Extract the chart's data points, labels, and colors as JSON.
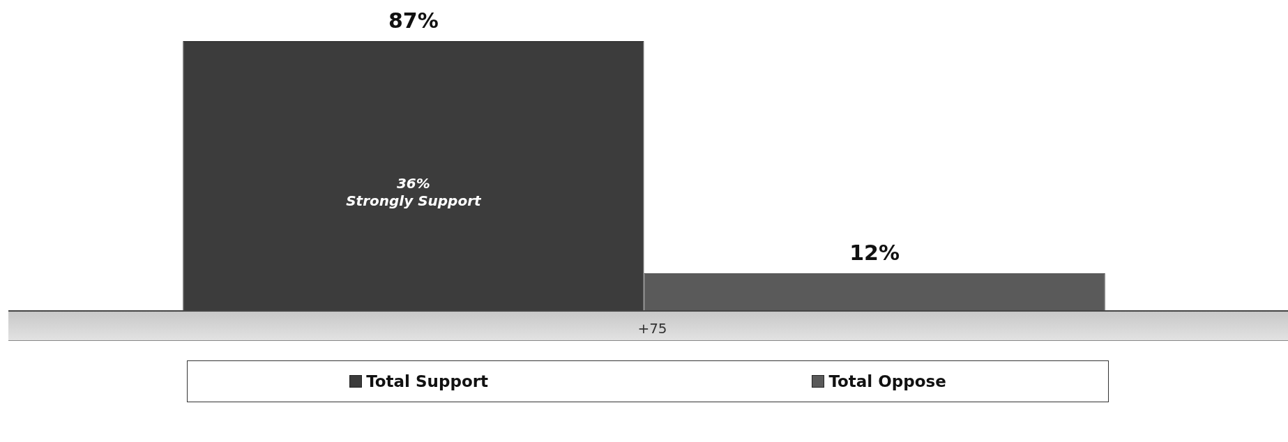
{
  "chart_data": {
    "type": "bar",
    "categories": [
      null
    ],
    "series": [
      {
        "name": "Total Support",
        "color": "#3c3c3c",
        "values": [
          87
        ],
        "value_labels": [
          "87%"
        ]
      },
      {
        "name": "Total Oppose",
        "color": "#5a5a5a",
        "values": [
          12
        ],
        "value_labels": [
          "12%"
        ]
      }
    ],
    "ylim": [
      0,
      87
    ],
    "legend": "bottom",
    "annotations": [
      "36%\nStrongly Support",
      "+75"
    ]
  }
}
